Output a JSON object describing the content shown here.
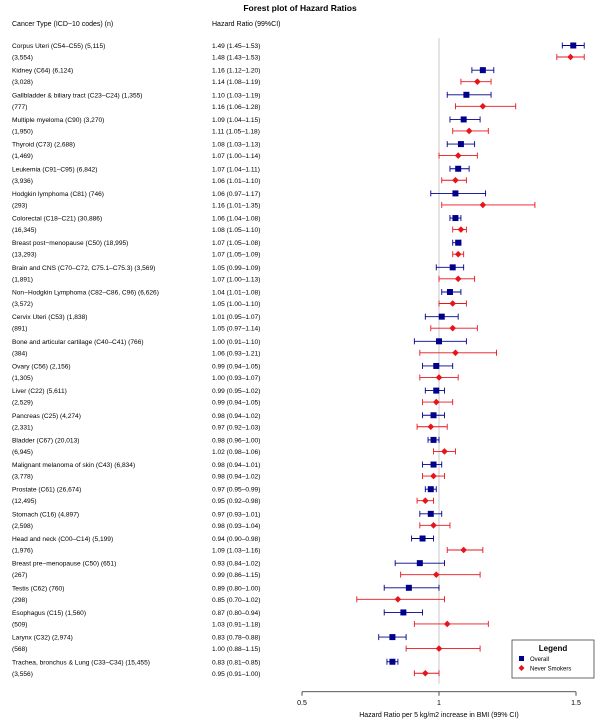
{
  "chart_data": {
    "type": "forest",
    "title": "Forest plot of Hazard Ratios",
    "column_headers": {
      "label": "Cancer Type (ICD−10 codes) (n)",
      "estimate": "Hazard Ratio (99%CI)"
    },
    "xlabel": "Hazard Ratio per 5 kg/m2 increase in BMI (99% CI)",
    "x_ticks": [
      "0.5",
      "1",
      "1.5"
    ],
    "xlim": [
      0.5,
      1.5
    ],
    "reference_line": 1,
    "legend": {
      "title": "Legend",
      "position": "bottom-right",
      "entries": [
        {
          "name": "Overall",
          "color": "#00008b",
          "marker": "square"
        },
        {
          "name": "Never Smokers",
          "color": "#e8141c",
          "marker": "diamond"
        }
      ]
    },
    "rows": [
      {
        "label": "Corpus Uteri (C54–C55) (5,115)",
        "n_never": "(3,554)",
        "overall_text": "1.49 (1.45–1.53)",
        "never_text": "1.48 (1.43–1.53)",
        "overall": [
          1.49,
          1.45,
          1.53
        ],
        "never": [
          1.48,
          1.43,
          1.53
        ]
      },
      {
        "label": "Kidney (C64) (6,124)",
        "n_never": "(3,028)",
        "overall_text": "1.16 (1.12–1.20)",
        "never_text": "1.14 (1.08–1.19)",
        "overall": [
          1.16,
          1.12,
          1.2
        ],
        "never": [
          1.14,
          1.08,
          1.19
        ]
      },
      {
        "label": "Gallbladder & biliary tract (C23–C24) (1,355)",
        "n_never": "(777)",
        "overall_text": "1.10 (1.03–1.19)",
        "never_text": "1.16 (1.06–1.28)",
        "overall": [
          1.1,
          1.03,
          1.19
        ],
        "never": [
          1.16,
          1.06,
          1.28
        ]
      },
      {
        "label": "Multiple myeloma (C90) (3,270)",
        "n_never": "(1,950)",
        "overall_text": "1.09 (1.04–1.15)",
        "never_text": "1.11 (1.05–1.18)",
        "overall": [
          1.09,
          1.04,
          1.15
        ],
        "never": [
          1.11,
          1.05,
          1.18
        ]
      },
      {
        "label": "Thyroid (C73) (2,688)",
        "n_never": "(1,469)",
        "overall_text": "1.08 (1.03–1.13)",
        "never_text": "1.07 (1.00–1.14)",
        "overall": [
          1.08,
          1.03,
          1.13
        ],
        "never": [
          1.07,
          1.0,
          1.14
        ]
      },
      {
        "label": "Leukemia (C91–C95) (6,842)",
        "n_never": "(3,936)",
        "overall_text": "1.07 (1.04–1.11)",
        "never_text": "1.06 (1.01–1.10)",
        "overall": [
          1.07,
          1.04,
          1.11
        ],
        "never": [
          1.06,
          1.01,
          1.1
        ]
      },
      {
        "label": "Hodgkin lymphoma (C81) (746)",
        "n_never": "(293)",
        "overall_text": "1.06 (0.97–1.17)",
        "never_text": "1.16 (1.01–1.35)",
        "overall": [
          1.06,
          0.97,
          1.17
        ],
        "never": [
          1.16,
          1.01,
          1.35
        ]
      },
      {
        "label": "Colorectal (C18–C21) (30,886)",
        "n_never": "(16,345)",
        "overall_text": "1.06 (1.04–1.08)",
        "never_text": "1.08 (1.05–1.10)",
        "overall": [
          1.06,
          1.04,
          1.08
        ],
        "never": [
          1.08,
          1.05,
          1.1
        ]
      },
      {
        "label": "Breast post−menopause (C50) (18,995)",
        "n_never": "(13,293)",
        "overall_text": "1.07 (1.05–1.08)",
        "never_text": "1.07 (1.05–1.09)",
        "overall": [
          1.07,
          1.05,
          1.08
        ],
        "never": [
          1.07,
          1.05,
          1.09
        ]
      },
      {
        "label": "Brain and CNS (C70–C72, C75.1–C75.3) (3,569)",
        "n_never": "(1,891)",
        "overall_text": "1.05 (0.99–1.09)",
        "never_text": "1.07 (1.00–1.13)",
        "overall": [
          1.05,
          0.99,
          1.09
        ],
        "never": [
          1.07,
          1.0,
          1.13
        ]
      },
      {
        "label": "Non−Hodgkin Lymphoma (C82–C86, C96) (6,626)",
        "n_never": "(3,572)",
        "overall_text": "1.04 (1.01–1.08)",
        "never_text": "1.05 (1.00–1.10)",
        "overall": [
          1.04,
          1.01,
          1.08
        ],
        "never": [
          1.05,
          1.0,
          1.1
        ]
      },
      {
        "label": "Cervix Uteri (C53) (1,838)",
        "n_never": "(891)",
        "overall_text": "1.01 (0.95–1.07)",
        "never_text": "1.05 (0.97–1.14)",
        "overall": [
          1.01,
          0.95,
          1.07
        ],
        "never": [
          1.05,
          0.97,
          1.14
        ]
      },
      {
        "label": "Bone and articular cartilage (C40–C41) (766)",
        "n_never": "(384)",
        "overall_text": "1.00 (0.91–1.10)",
        "never_text": "1.06 (0.93–1.21)",
        "overall": [
          1.0,
          0.91,
          1.1
        ],
        "never": [
          1.06,
          0.93,
          1.21
        ]
      },
      {
        "label": "Ovary (C56) (2,156)",
        "n_never": "(1,305)",
        "overall_text": "0.99 (0.94–1.05)",
        "never_text": "1.00 (0.93–1.07)",
        "overall": [
          0.99,
          0.94,
          1.05
        ],
        "never": [
          1.0,
          0.93,
          1.07
        ]
      },
      {
        "label": "Liver (C22) (5,611)",
        "n_never": "(2,529)",
        "overall_text": "0.99 (0.95–1.02)",
        "never_text": "0.99 (0.94–1.05)",
        "overall": [
          0.99,
          0.95,
          1.02
        ],
        "never": [
          0.99,
          0.94,
          1.05
        ]
      },
      {
        "label": "Pancreas (C25) (4,274)",
        "n_never": "(2,331)",
        "overall_text": "0.98 (0.94–1.02)",
        "never_text": "0.97 (0.92–1.03)",
        "overall": [
          0.98,
          0.94,
          1.02
        ],
        "never": [
          0.97,
          0.92,
          1.03
        ]
      },
      {
        "label": "Bladder (C67) (20,013)",
        "n_never": "(6,945)",
        "overall_text": "0.98 (0.96–1.00)",
        "never_text": "1.02 (0.98–1.06)",
        "overall": [
          0.98,
          0.96,
          1.0
        ],
        "never": [
          1.02,
          0.98,
          1.06
        ]
      },
      {
        "label": "Malignant melanoma of skin (C43) (6,834)",
        "n_never": "(3,778)",
        "overall_text": "0.98 (0.94–1.01)",
        "never_text": "0.98 (0.94–1.02)",
        "overall": [
          0.98,
          0.94,
          1.01
        ],
        "never": [
          0.98,
          0.94,
          1.02
        ]
      },
      {
        "label": "Prostate (C61) (26,674)",
        "n_never": "(12,495)",
        "overall_text": "0.97 (0.95–0.99)",
        "never_text": "0.95 (0.92–0.98)",
        "overall": [
          0.97,
          0.95,
          0.99
        ],
        "never": [
          0.95,
          0.92,
          0.98
        ]
      },
      {
        "label": "Stomach (C16) (4,897)",
        "n_never": "(2,598)",
        "overall_text": "0.97 (0.93–1.01)",
        "never_text": "0.98 (0.93–1.04)",
        "overall": [
          0.97,
          0.93,
          1.01
        ],
        "never": [
          0.98,
          0.93,
          1.04
        ]
      },
      {
        "label": "Head and neck (C00–C14) (5,199)",
        "n_never": "(1,976)",
        "overall_text": "0.94 (0.90–0.98)",
        "never_text": "1.09 (1.03–1.16)",
        "overall": [
          0.94,
          0.9,
          0.98
        ],
        "never": [
          1.09,
          1.03,
          1.16
        ]
      },
      {
        "label": "Breast pre−menopause (C50) (651)",
        "n_never": "(267)",
        "overall_text": "0.93 (0.84–1.02)",
        "never_text": "0.99 (0.86–1.15)",
        "overall": [
          0.93,
          0.84,
          1.02
        ],
        "never": [
          0.99,
          0.86,
          1.15
        ]
      },
      {
        "label": "Testis (C62) (760)",
        "n_never": "(298)",
        "overall_text": "0.89 (0.80–1.00)",
        "never_text": "0.85 (0.70–1.02)",
        "overall": [
          0.89,
          0.8,
          1.0
        ],
        "never": [
          0.85,
          0.7,
          1.02
        ]
      },
      {
        "label": "Esophagus (C15) (1,560)",
        "n_never": "(509)",
        "overall_text": "0.87 (0.80–0.94)",
        "never_text": "1.03 (0.91–1.18)",
        "overall": [
          0.87,
          0.8,
          0.94
        ],
        "never": [
          1.03,
          0.91,
          1.18
        ]
      },
      {
        "label": "Larynx (C32) (2,974)",
        "n_never": "(568)",
        "overall_text": "0.83 (0.78–0.88)",
        "never_text": "1.00 (0.88–1.15)",
        "overall": [
          0.83,
          0.78,
          0.88
        ],
        "never": [
          1.0,
          0.88,
          1.15
        ]
      },
      {
        "label": "Trachea, bronchus & Lung (C33–C34) (15,455)",
        "n_never": "(3,556)",
        "overall_text": "0.83 (0.81–0.85)",
        "never_text": "0.95 (0.91–1.00)",
        "overall": [
          0.83,
          0.81,
          0.85
        ],
        "never": [
          0.95,
          0.91,
          1.0
        ]
      }
    ]
  }
}
